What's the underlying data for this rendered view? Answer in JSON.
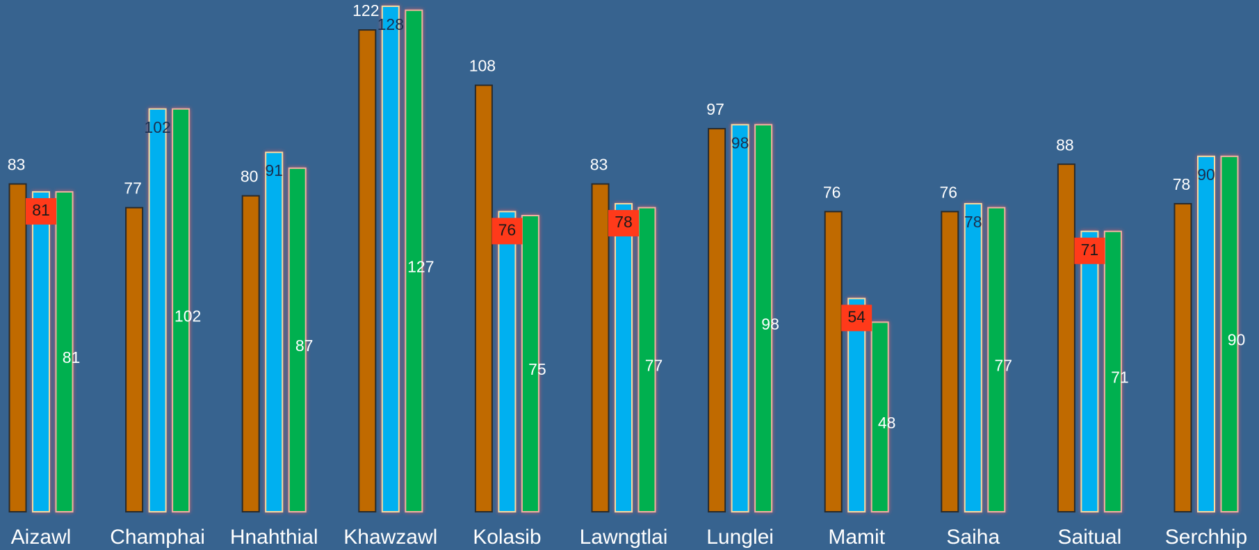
{
  "chart_data": {
    "type": "bar",
    "categories": [
      "Aizawl",
      "Champhai",
      "Hnahthial",
      "Khawzawl",
      "Kolasib",
      "Lawngtlai",
      "Lunglei",
      "Mamit",
      "Saiha",
      "Saitual",
      "Serchhip"
    ],
    "series": [
      {
        "color": "#c06a00",
        "values": [
          83,
          77,
          80,
          122,
          108,
          83,
          97,
          76,
          76,
          88,
          78
        ]
      },
      {
        "color": "#00b0f0",
        "values": [
          81,
          102,
          91,
          128,
          76,
          78,
          98,
          54,
          78,
          71,
          90
        ]
      },
      {
        "color": "#00b050",
        "values": [
          81,
          102,
          87,
          127,
          75,
          77,
          98,
          48,
          77,
          71,
          90
        ]
      }
    ],
    "highlight_color": "#ff3a1a",
    "ylim": [
      0,
      128
    ]
  }
}
